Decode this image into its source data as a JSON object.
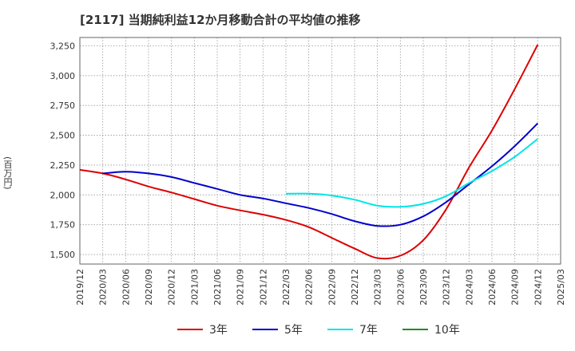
{
  "chart_data": {
    "type": "line",
    "title": "[2117]  当期純利益12か月移動合計の平均値の推移",
    "ylabel": "(百万円)",
    "xlabel": "",
    "ylim": [
      1420,
      3320
    ],
    "yticks": [
      1500,
      1750,
      2000,
      2250,
      2500,
      2750,
      3000,
      3250
    ],
    "ytick_labels": [
      "1,500",
      "1,750",
      "2,000",
      "2,250",
      "2,500",
      "2,750",
      "3,000",
      "3,250"
    ],
    "xticks": [
      "2019/12",
      "2020/03",
      "2020/06",
      "2020/09",
      "2020/12",
      "2021/03",
      "2021/06",
      "2021/09",
      "2021/12",
      "2022/03",
      "2022/06",
      "2022/09",
      "2022/12",
      "2023/03",
      "2023/06",
      "2023/09",
      "2023/12",
      "2024/03",
      "2024/06",
      "2024/09",
      "2024/12",
      "2025/03"
    ],
    "grid": true,
    "legend_position": "bottom",
    "series": [
      {
        "name": "3年",
        "color": "#dd0000",
        "points": [
          [
            "2019/12",
            2210
          ],
          [
            "2020/03",
            2180
          ],
          [
            "2020/06",
            2130
          ],
          [
            "2020/09",
            2070
          ],
          [
            "2020/12",
            2020
          ],
          [
            "2021/03",
            1965
          ],
          [
            "2021/06",
            1910
          ],
          [
            "2021/09",
            1870
          ],
          [
            "2021/12",
            1835
          ],
          [
            "2022/03",
            1790
          ],
          [
            "2022/06",
            1730
          ],
          [
            "2022/09",
            1640
          ],
          [
            "2022/12",
            1550
          ],
          [
            "2023/03",
            1470
          ],
          [
            "2023/06",
            1490
          ],
          [
            "2023/09",
            1620
          ],
          [
            "2023/12",
            1880
          ],
          [
            "2024/03",
            2230
          ],
          [
            "2024/06",
            2540
          ],
          [
            "2024/09",
            2890
          ],
          [
            "2024/12",
            3260
          ]
        ]
      },
      {
        "name": "5年",
        "color": "#0000cc",
        "points": [
          [
            "2020/03",
            2180
          ],
          [
            "2020/06",
            2195
          ],
          [
            "2020/09",
            2180
          ],
          [
            "2020/12",
            2150
          ],
          [
            "2021/03",
            2100
          ],
          [
            "2021/06",
            2050
          ],
          [
            "2021/09",
            2000
          ],
          [
            "2021/12",
            1970
          ],
          [
            "2022/03",
            1930
          ],
          [
            "2022/06",
            1890
          ],
          [
            "2022/09",
            1840
          ],
          [
            "2022/12",
            1780
          ],
          [
            "2023/03",
            1740
          ],
          [
            "2023/06",
            1750
          ],
          [
            "2023/09",
            1820
          ],
          [
            "2023/12",
            1940
          ],
          [
            "2024/03",
            2090
          ],
          [
            "2024/06",
            2240
          ],
          [
            "2024/09",
            2410
          ],
          [
            "2024/12",
            2600
          ]
        ]
      },
      {
        "name": "7年",
        "color": "#00e5e5",
        "points": [
          [
            "2022/03",
            2010
          ],
          [
            "2022/06",
            2010
          ],
          [
            "2022/09",
            1995
          ],
          [
            "2022/12",
            1960
          ],
          [
            "2023/03",
            1910
          ],
          [
            "2023/06",
            1900
          ],
          [
            "2023/09",
            1925
          ],
          [
            "2023/12",
            1990
          ],
          [
            "2024/03",
            2100
          ],
          [
            "2024/06",
            2200
          ],
          [
            "2024/09",
            2320
          ],
          [
            "2024/12",
            2470
          ]
        ]
      },
      {
        "name": "10年",
        "color": "#228b22",
        "points": []
      }
    ]
  }
}
